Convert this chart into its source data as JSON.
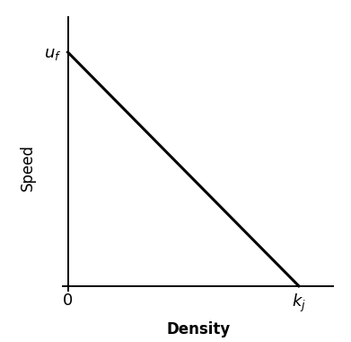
{
  "x": [
    0,
    1
  ],
  "y": [
    1,
    0
  ],
  "xlabel": "Density",
  "ylabel": "Speed",
  "x_tick_labels": [
    "0",
    "$k_j$"
  ],
  "y_tick_labels": [
    "$u_f$"
  ],
  "y_tick_positions": [
    1
  ],
  "x_tick_positions": [
    0,
    1
  ],
  "line_color": "#000000",
  "line_width": 2.2,
  "background_color": "#ffffff",
  "xlabel_fontsize": 12,
  "ylabel_fontsize": 12,
  "tick_fontsize": 13,
  "xlim": [
    0,
    1.15
  ],
  "ylim": [
    0,
    1.15
  ]
}
